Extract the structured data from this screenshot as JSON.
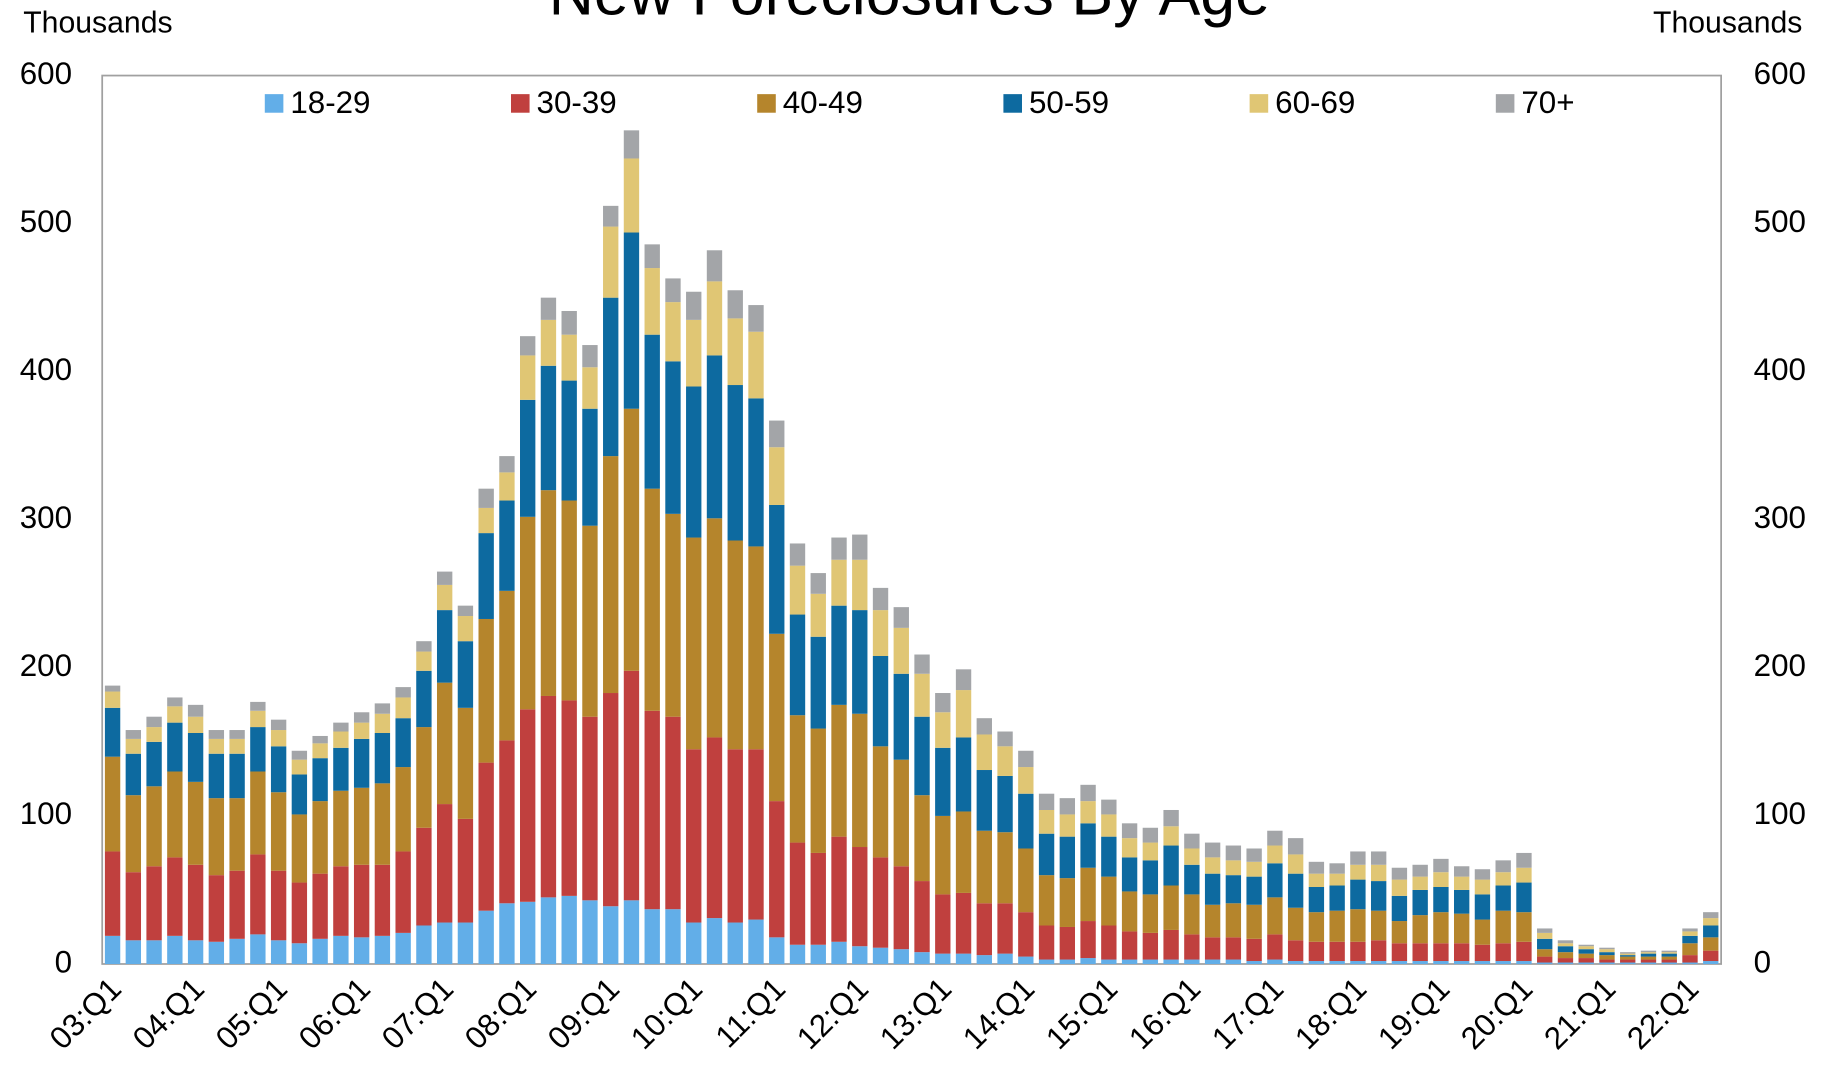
{
  "chart_data": {
    "type": "stacked_bar",
    "title": "New Foreclosures By Age",
    "ylabel": "Thousands",
    "y2label": "Thousands",
    "categories": [
      "03:Q1",
      null,
      null,
      null,
      "04:Q1",
      null,
      null,
      null,
      "05:Q1",
      null,
      null,
      null,
      "06:Q1",
      null,
      null,
      null,
      "07:Q1",
      null,
      null,
      null,
      "08:Q1",
      null,
      null,
      null,
      "09:Q1",
      null,
      null,
      null,
      "10:Q1",
      null,
      null,
      null,
      "11:Q1",
      null,
      null,
      null,
      "12:Q1",
      null,
      null,
      null,
      "13:Q1",
      null,
      null,
      null,
      "14:Q1",
      null,
      null,
      null,
      "15:Q1",
      null,
      null,
      null,
      "16:Q1",
      null,
      null,
      null,
      "17:Q1",
      null,
      null,
      null,
      "18:Q1",
      null,
      null,
      null,
      "19:Q1",
      null,
      null,
      null,
      "20:Q1",
      null,
      null,
      null,
      "21:Q1",
      null,
      null,
      null,
      "22:Q1",
      null
    ],
    "series": [
      {
        "name": "18-29",
        "color": "#62aee8",
        "values": [
          19,
          16,
          16,
          19,
          16,
          15,
          17,
          20,
          16,
          14,
          17,
          19,
          18,
          19,
          21,
          26,
          28,
          28,
          36,
          41,
          42,
          45,
          46,
          43,
          39,
          43,
          37,
          37,
          28,
          31,
          28,
          30,
          18,
          13,
          13,
          15,
          12,
          11,
          10,
          8,
          7,
          7,
          6,
          7,
          5,
          3,
          3,
          4,
          3,
          3,
          3,
          3,
          3,
          3,
          3,
          2,
          3,
          2,
          2,
          2,
          2,
          2,
          2,
          2,
          2,
          2,
          2,
          2,
          2,
          1,
          1,
          1,
          1,
          1,
          1,
          1,
          1,
          2
        ]
      },
      {
        "name": "30-39",
        "color": "#c0403e",
        "values": [
          57,
          46,
          50,
          53,
          51,
          45,
          46,
          54,
          47,
          41,
          44,
          47,
          49,
          48,
          55,
          66,
          80,
          70,
          100,
          110,
          130,
          136,
          132,
          124,
          144,
          155,
          134,
          130,
          117,
          122,
          117,
          115,
          92,
          69,
          62,
          71,
          67,
          61,
          56,
          48,
          40,
          41,
          35,
          34,
          30,
          23,
          22,
          25,
          23,
          19,
          18,
          20,
          17,
          15,
          15,
          15,
          17,
          14,
          13,
          13,
          13,
          14,
          12,
          12,
          12,
          12,
          11,
          12,
          13,
          4,
          3,
          3,
          2,
          2,
          2,
          2,
          5,
          7
        ]
      },
      {
        "name": "40-49",
        "color": "#b5852c",
        "values": [
          64,
          52,
          54,
          58,
          56,
          52,
          49,
          56,
          53,
          46,
          49,
          51,
          52,
          55,
          57,
          68,
          82,
          75,
          97,
          101,
          130,
          139,
          135,
          129,
          160,
          177,
          150,
          137,
          143,
          148,
          141,
          137,
          113,
          86,
          84,
          89,
          90,
          75,
          72,
          58,
          53,
          55,
          49,
          48,
          43,
          34,
          33,
          36,
          33,
          27,
          26,
          30,
          27,
          22,
          23,
          23,
          25,
          22,
          20,
          21,
          22,
          20,
          15,
          19,
          21,
          20,
          17,
          22,
          20,
          5,
          4,
          3,
          3,
          2,
          2,
          2,
          8,
          9
        ]
      },
      {
        "name": "50-59",
        "color": "#0d6aa0",
        "values": [
          33,
          28,
          30,
          33,
          33,
          30,
          30,
          30,
          31,
          27,
          29,
          29,
          33,
          34,
          33,
          38,
          49,
          45,
          58,
          61,
          79,
          84,
          81,
          79,
          107,
          119,
          104,
          103,
          102,
          110,
          105,
          100,
          87,
          68,
          62,
          67,
          70,
          61,
          58,
          53,
          46,
          50,
          41,
          38,
          37,
          28,
          28,
          30,
          27,
          23,
          23,
          27,
          20,
          21,
          19,
          19,
          23,
          23,
          17,
          17,
          20,
          20,
          17,
          17,
          17,
          16,
          17,
          17,
          20,
          7,
          4,
          3,
          2,
          1,
          2,
          2,
          5,
          8
        ]
      },
      {
        "name": "60-69",
        "color": "#e0c674",
        "values": [
          11,
          10,
          10,
          11,
          11,
          10,
          10,
          11,
          11,
          10,
          10,
          11,
          11,
          13,
          14,
          13,
          17,
          17,
          17,
          19,
          30,
          31,
          31,
          28,
          48,
          50,
          45,
          40,
          45,
          50,
          45,
          45,
          39,
          33,
          29,
          31,
          34,
          31,
          31,
          29,
          24,
          32,
          24,
          20,
          18,
          16,
          15,
          15,
          15,
          13,
          12,
          13,
          11,
          11,
          10,
          10,
          12,
          13,
          9,
          8,
          10,
          11,
          11,
          9,
          10,
          9,
          10,
          9,
          10,
          4,
          2,
          2,
          2,
          1,
          1,
          1,
          3,
          5
        ]
      },
      {
        "name": "70+",
        "color": "#a3a5a8",
        "values": [
          4,
          6,
          7,
          6,
          8,
          6,
          6,
          6,
          7,
          6,
          5,
          6,
          7,
          7,
          7,
          7,
          9,
          7,
          13,
          11,
          13,
          15,
          16,
          15,
          14,
          19,
          16,
          16,
          19,
          21,
          19,
          18,
          18,
          15,
          14,
          15,
          17,
          15,
          14,
          13,
          13,
          14,
          11,
          10,
          11,
          11,
          11,
          11,
          10,
          10,
          10,
          11,
          10,
          10,
          10,
          9,
          10,
          11,
          8,
          7,
          9,
          9,
          8,
          8,
          9,
          7,
          7,
          8,
          10,
          3,
          2,
          1,
          1,
          1,
          1,
          1,
          2,
          4
        ]
      }
    ],
    "ylim": [
      0,
      600
    ],
    "yticks": [
      0,
      100,
      200,
      300,
      400,
      500,
      600
    ],
    "y2lim": [
      0,
      600
    ],
    "y2ticks": [
      0,
      100,
      200,
      300,
      400,
      500,
      600
    ],
    "legend": "top",
    "grid": false
  }
}
